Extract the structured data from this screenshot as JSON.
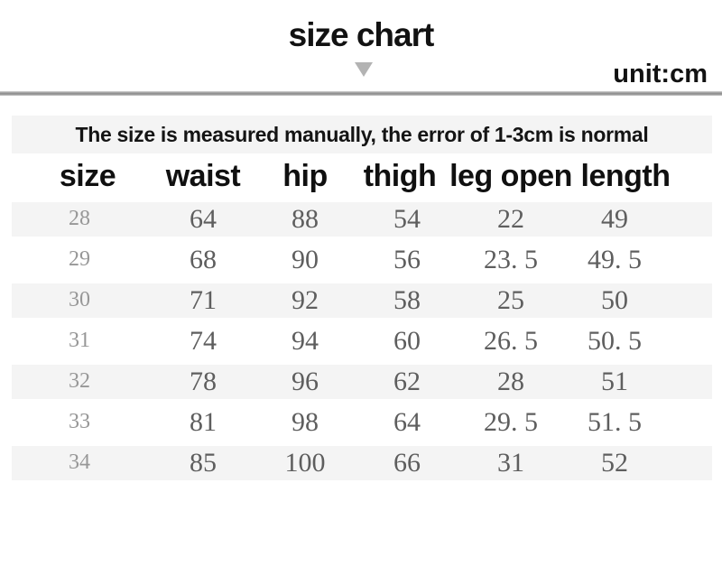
{
  "header": {
    "title": "size chart",
    "unit_label": "unit:cm"
  },
  "note": {
    "text": "The size is measured manually, the error of 1-3cm is normal"
  },
  "colors": {
    "background": "#ffffff",
    "stripe_bg": "#f4f4f4",
    "note_bg": "#f4f4f4",
    "divider_gray": "#8f8f8f",
    "triangle_gray": "#b3b3b3",
    "heading_text": "#121212",
    "value_text": "#5e5e5e",
    "size_label_text": "#979797"
  },
  "chart_data": {
    "type": "table",
    "title": "size chart",
    "unit": "cm",
    "columns": [
      "size",
      "waist",
      "hip",
      "thigh",
      "leg open",
      "length"
    ],
    "rows": [
      [
        "28",
        "64",
        "88",
        "54",
        "22",
        "49"
      ],
      [
        "29",
        "68",
        "90",
        "56",
        "23. 5",
        "49. 5"
      ],
      [
        "30",
        "71",
        "92",
        "58",
        "25",
        "50"
      ],
      [
        "31",
        "74",
        "94",
        "60",
        "26. 5",
        "50. 5"
      ],
      [
        "32",
        "78",
        "96",
        "62",
        "28",
        "51"
      ],
      [
        "33",
        "81",
        "98",
        "64",
        "29. 5",
        "51. 5"
      ],
      [
        "34",
        "85",
        "100",
        "66",
        "31",
        "52"
      ]
    ]
  }
}
